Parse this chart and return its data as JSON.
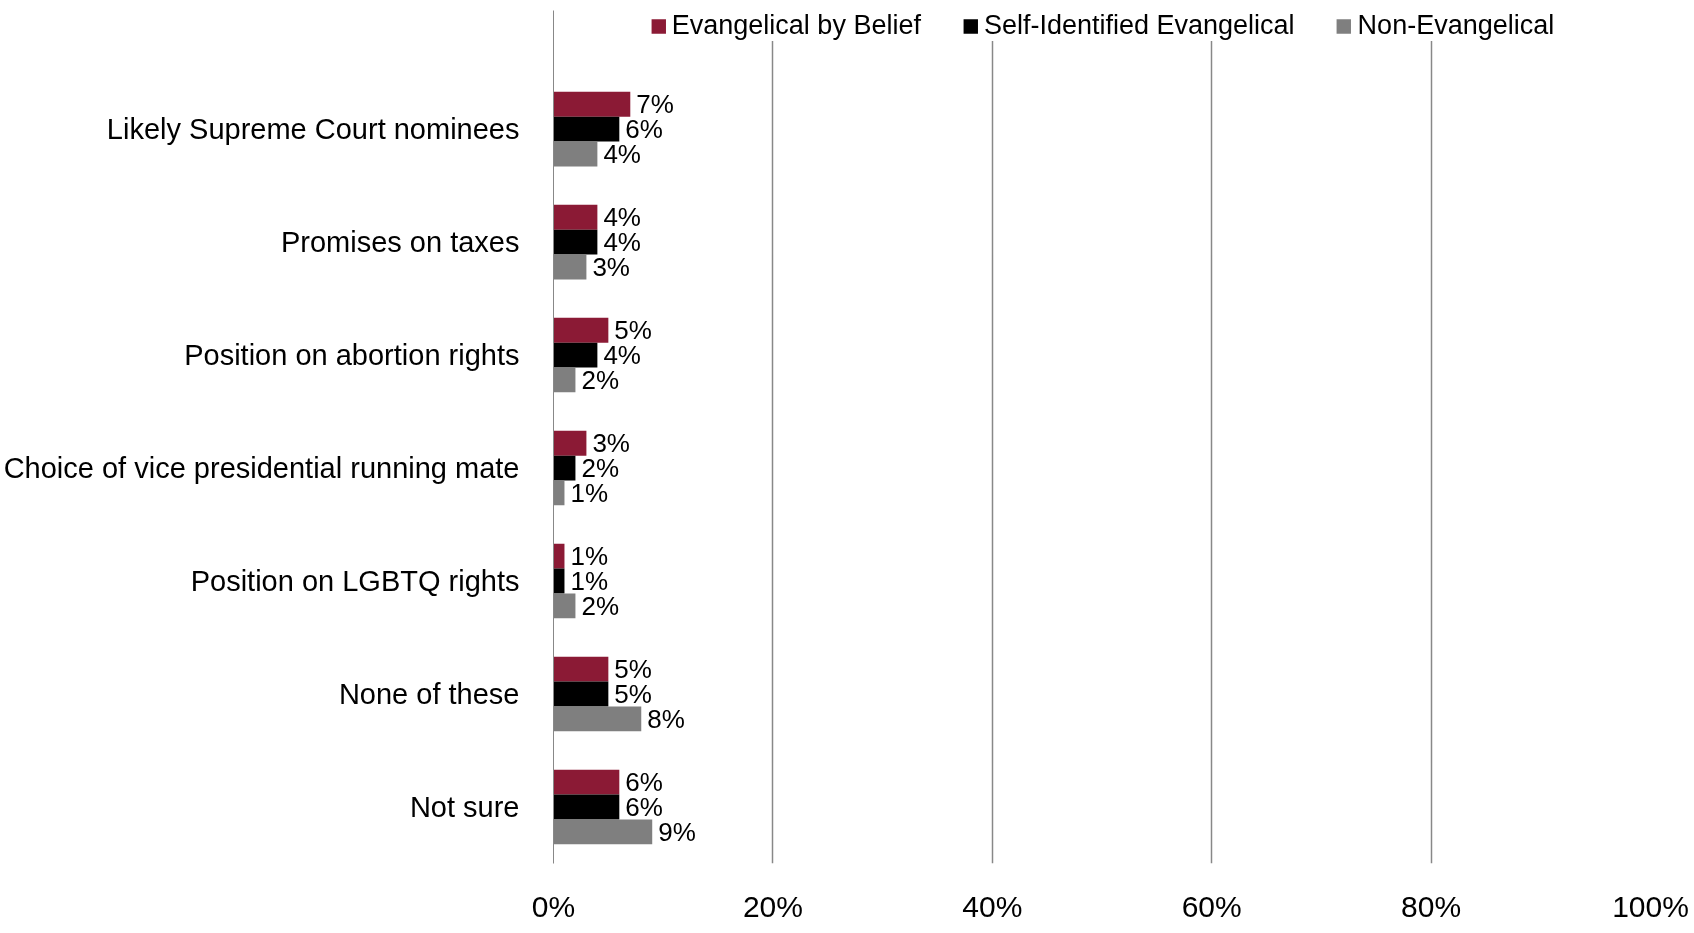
{
  "chart_data": {
    "type": "bar",
    "orientation": "horizontal",
    "categories": [
      "Likely Supreme Court nominees",
      "Promises on taxes",
      "Position on abortion rights",
      "Choice of vice presidential running mate",
      "Position on LGBTQ rights",
      "None of these",
      "Not sure"
    ],
    "series": [
      {
        "name": "Evangelical by Belief",
        "color": "#8b1a35",
        "values": [
          7,
          4,
          5,
          3,
          1,
          5,
          6
        ],
        "value_labels": [
          "7%",
          "4%",
          "5%",
          "3%",
          "1%",
          "5%",
          "6%"
        ]
      },
      {
        "name": "Self-Identified Evangelical",
        "color": "#000000",
        "values": [
          6,
          4,
          4,
          2,
          1,
          5,
          6
        ],
        "value_labels": [
          "6%",
          "4%",
          "4%",
          "2%",
          "1%",
          "5%",
          "6%"
        ]
      },
      {
        "name": "Non-Evangelical",
        "color": "#7f7f7f",
        "values": [
          4,
          3,
          2,
          1,
          2,
          8,
          9
        ],
        "value_labels": [
          "4%",
          "3%",
          "2%",
          "1%",
          "2%",
          "8%",
          "9%"
        ]
      }
    ],
    "xlim": [
      0,
      100
    ],
    "xticks": [
      {
        "value": 0,
        "label": "0%"
      },
      {
        "value": 20,
        "label": "20%"
      },
      {
        "value": 40,
        "label": "40%"
      },
      {
        "value": 60,
        "label": "60%"
      },
      {
        "value": 80,
        "label": "80%"
      },
      {
        "value": 100,
        "label": "100%"
      }
    ],
    "grid": "x",
    "legend": "top"
  }
}
